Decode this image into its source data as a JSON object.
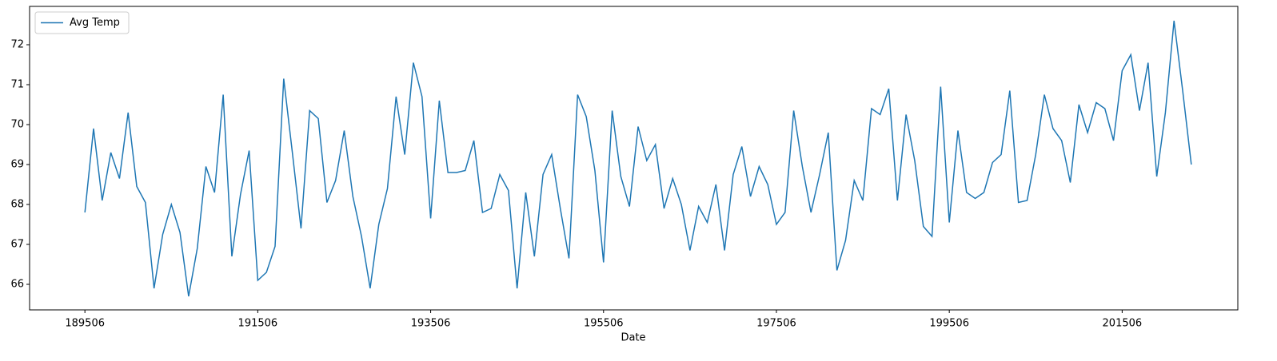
{
  "chart_data": {
    "type": "line",
    "x_label": "Date",
    "legend": "upper left",
    "grid": false,
    "x": [
      189506,
      189606,
      189706,
      189806,
      189906,
      190006,
      190106,
      190206,
      190306,
      190406,
      190506,
      190606,
      190706,
      190806,
      190906,
      191006,
      191106,
      191206,
      191306,
      191406,
      191506,
      191606,
      191706,
      191806,
      191906,
      192006,
      192106,
      192206,
      192306,
      192406,
      192506,
      192606,
      192706,
      192806,
      192906,
      193006,
      193106,
      193206,
      193306,
      193406,
      193506,
      193606,
      193706,
      193806,
      193906,
      194006,
      194106,
      194206,
      194306,
      194406,
      194506,
      194606,
      194706,
      194806,
      194906,
      195006,
      195106,
      195206,
      195306,
      195406,
      195506,
      195606,
      195706,
      195806,
      195906,
      196006,
      196106,
      196206,
      196306,
      196406,
      196506,
      196606,
      196706,
      196806,
      196906,
      197006,
      197106,
      197206,
      197306,
      197406,
      197506,
      197606,
      197706,
      197806,
      197906,
      198006,
      198106,
      198206,
      198306,
      198406,
      198506,
      198606,
      198706,
      198806,
      198906,
      199006,
      199106,
      199206,
      199306,
      199406,
      199506,
      199606,
      199706,
      199806,
      199906,
      200006,
      200106,
      200206,
      200306,
      200406,
      200506,
      200606,
      200706,
      200806,
      200906,
      201006,
      201106,
      201206,
      201306,
      201406,
      201506,
      201606,
      201706,
      201806,
      201906,
      202006,
      202106,
      202206,
      202306
    ],
    "series": [
      {
        "name": "Avg Temp",
        "color": "#1f77b4",
        "values": [
          67.8,
          69.9,
          68.1,
          69.3,
          68.65,
          70.3,
          68.45,
          68.05,
          65.9,
          67.25,
          68.0,
          67.3,
          65.7,
          66.9,
          68.95,
          68.3,
          70.75,
          66.7,
          68.25,
          69.35,
          66.1,
          66.3,
          66.95,
          71.15,
          69.3,
          67.4,
          70.35,
          70.15,
          68.05,
          68.6,
          69.85,
          68.2,
          67.2,
          65.9,
          67.5,
          68.4,
          70.7,
          69.25,
          71.55,
          70.7,
          67.65,
          70.6,
          68.8,
          68.8,
          68.85,
          69.6,
          67.8,
          67.9,
          68.75,
          68.35,
          65.9,
          68.3,
          66.7,
          68.75,
          69.25,
          67.9,
          66.65,
          70.75,
          70.2,
          68.85,
          66.55,
          70.35,
          68.7,
          67.95,
          69.95,
          69.1,
          69.5,
          67.9,
          68.65,
          68.0,
          66.85,
          67.95,
          67.55,
          68.5,
          66.85,
          68.75,
          69.45,
          68.2,
          68.95,
          68.5,
          67.5,
          67.8,
          70.35,
          68.95,
          67.8,
          68.75,
          69.8,
          66.35,
          67.1,
          68.6,
          68.1,
          70.4,
          70.25,
          70.9,
          68.1,
          70.25,
          69.1,
          67.45,
          67.2,
          70.95,
          67.55,
          69.85,
          68.3,
          68.15,
          68.3,
          69.05,
          69.25,
          70.85,
          68.05,
          68.1,
          69.25,
          70.75,
          69.9,
          69.6,
          68.55,
          70.5,
          69.8,
          70.55,
          70.4,
          69.6,
          71.35,
          71.75,
          70.35,
          71.55,
          68.7,
          70.3,
          72.6,
          70.85,
          69.0
        ]
      }
    ],
    "xlim": [
      188866,
      202844
    ],
    "xticks": [
      189506,
      191506,
      193506,
      195506,
      197506,
      199506,
      201506
    ],
    "ylim": [
      65.36,
      72.96
    ],
    "yticks": [
      66,
      67,
      68,
      69,
      70,
      71,
      72
    ]
  }
}
